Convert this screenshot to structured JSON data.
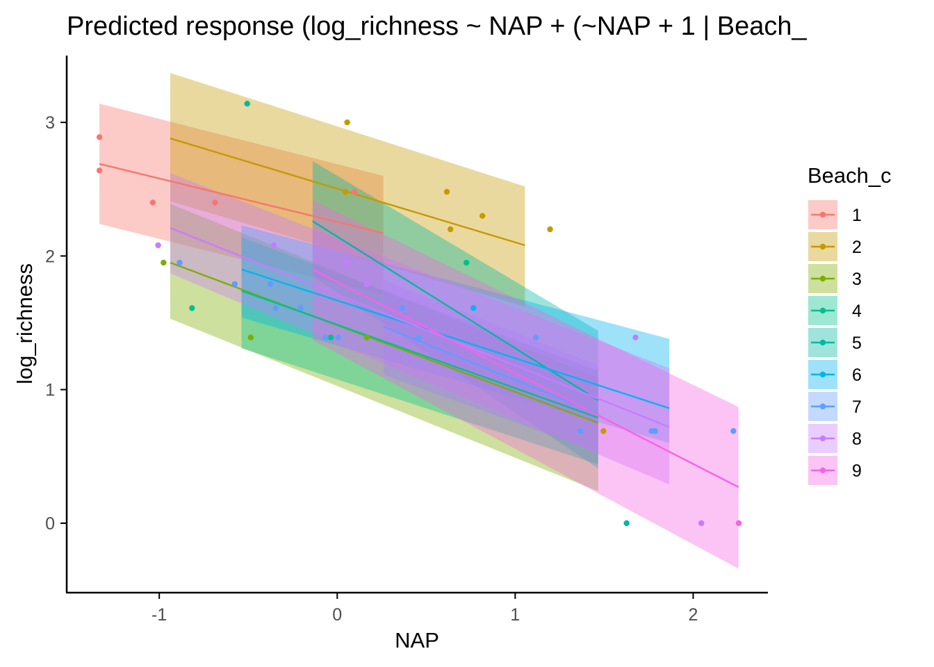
{
  "chart_data": {
    "type": "line",
    "title": "Predicted response (log_richness ~ NAP + (~NAP + 1 | Beach_",
    "xlabel": "NAP",
    "ylabel": "log_richness",
    "xlim": [
      -1.52,
      2.42
    ],
    "ylim": [
      -0.52,
      3.5
    ],
    "x_ticks": [
      -1,
      0,
      1,
      2
    ],
    "x_tick_labels": [
      "-1",
      "0",
      "1",
      "2"
    ],
    "y_ticks": [
      0,
      1,
      2,
      3
    ],
    "y_tick_labels": [
      "0",
      "1",
      "2",
      "3"
    ],
    "grid": false,
    "legend": {
      "title": "Beach_c",
      "placement": "right"
    },
    "series": [
      {
        "name": "1",
        "color": "#F8766D",
        "x": [
          -1.336,
          0.259
        ],
        "fit": [
          2.69,
          2.17
        ],
        "lower": [
          2.24,
          1.71
        ],
        "upper": [
          3.14,
          2.6
        ]
      },
      {
        "name": "2",
        "color": "#C49A00",
        "x": [
          -0.938,
          1.055
        ],
        "fit": [
          2.88,
          2.08
        ],
        "lower": [
          2.41,
          1.62
        ],
        "upper": [
          3.37,
          2.52
        ]
      },
      {
        "name": "3",
        "color": "#7CAE00",
        "x": [
          -0.938,
          1.466
        ],
        "fit": [
          1.95,
          0.75
        ],
        "lower": [
          1.53,
          0.24
        ],
        "upper": [
          2.39,
          1.09
        ]
      },
      {
        "name": "4",
        "color": "#00C08B",
        "x": [
          -0.538,
          1.466
        ],
        "fit": [
          1.74,
          0.79
        ],
        "lower": [
          1.31,
          0.44
        ],
        "upper": [
          2.14,
          1.14
        ]
      },
      {
        "name": "5",
        "color": "#00B8A0",
        "x": [
          -0.138,
          1.466
        ],
        "fit": [
          2.26,
          0.92
        ],
        "lower": [
          1.85,
          0.41
        ],
        "upper": [
          2.71,
          1.44
        ]
      },
      {
        "name": "6",
        "color": "#00B4F0",
        "x": [
          -0.538,
          1.866
        ],
        "fit": [
          1.9,
          0.86
        ],
        "lower": [
          1.54,
          0.6
        ],
        "upper": [
          2.23,
          1.38
        ]
      },
      {
        "name": "7",
        "color": "#619CFF",
        "x": [
          0.262,
          1.466
        ],
        "fit": [
          1.47,
          0.82
        ],
        "lower": [
          1.11,
          0.53
        ],
        "upper": [
          1.82,
          1.18
        ]
      },
      {
        "name": "8",
        "color": "#C77CFF",
        "x": [
          -0.938,
          1.866
        ],
        "fit": [
          2.21,
          0.72
        ],
        "lower": [
          1.87,
          0.29
        ],
        "upper": [
          2.62,
          1.16
        ]
      },
      {
        "name": "9",
        "color": "#F564E3",
        "x": [
          -0.138,
          2.255
        ],
        "fit": [
          1.9,
          0.27
        ],
        "lower": [
          1.37,
          -0.34
        ],
        "upper": [
          2.42,
          0.87
        ]
      }
    ],
    "points": [
      {
        "series": "1",
        "x": -1.336,
        "y": 2.89
      },
      {
        "series": "1",
        "x": -1.336,
        "y": 2.64
      },
      {
        "series": "1",
        "x": -1.036,
        "y": 2.4
      },
      {
        "series": "1",
        "x": -0.686,
        "y": 2.4
      },
      {
        "series": "1",
        "x": 0.096,
        "y": 2.48
      },
      {
        "series": "2",
        "x": 0.056,
        "y": 3.0
      },
      {
        "series": "2",
        "x": 0.046,
        "y": 2.48
      },
      {
        "series": "2",
        "x": 0.616,
        "y": 2.48
      },
      {
        "series": "2",
        "x": 0.636,
        "y": 2.2
      },
      {
        "series": "2",
        "x": 0.816,
        "y": 2.3
      },
      {
        "series": "2",
        "x": 1.196,
        "y": 2.2
      },
      {
        "series": "2",
        "x": 1.496,
        "y": 0.69
      },
      {
        "series": "3",
        "x": -0.976,
        "y": 1.95
      },
      {
        "series": "3",
        "x": -0.486,
        "y": 1.39
      },
      {
        "series": "3",
        "x": 0.166,
        "y": 1.39
      },
      {
        "series": "4",
        "x": -0.816,
        "y": 1.61
      },
      {
        "series": "4",
        "x": -0.036,
        "y": 1.39
      },
      {
        "series": "4",
        "x": 0.726,
        "y": 1.95
      },
      {
        "series": "5",
        "x": -0.506,
        "y": 3.14
      },
      {
        "series": "5",
        "x": 1.626,
        "y": 0.0
      },
      {
        "series": "6",
        "x": 0.766,
        "y": 1.61
      },
      {
        "series": "7",
        "x": -0.886,
        "y": 1.95
      },
      {
        "series": "7",
        "x": -0.576,
        "y": 1.79
      },
      {
        "series": "7",
        "x": -0.376,
        "y": 1.79
      },
      {
        "series": "7",
        "x": -0.346,
        "y": 1.61
      },
      {
        "series": "7",
        "x": -0.206,
        "y": 1.61
      },
      {
        "series": "7",
        "x": -0.066,
        "y": 1.39
      },
      {
        "series": "7",
        "x": 0.006,
        "y": 1.39
      },
      {
        "series": "7",
        "x": 0.366,
        "y": 1.61
      },
      {
        "series": "7",
        "x": 0.456,
        "y": 1.39
      },
      {
        "series": "7",
        "x": 1.116,
        "y": 1.39
      },
      {
        "series": "7",
        "x": 1.366,
        "y": 0.69
      },
      {
        "series": "7",
        "x": 1.766,
        "y": 0.69
      },
      {
        "series": "7",
        "x": 1.786,
        "y": 0.69
      },
      {
        "series": "7",
        "x": 2.226,
        "y": 0.69
      },
      {
        "series": "8",
        "x": -1.006,
        "y": 2.08
      },
      {
        "series": "8",
        "x": -0.356,
        "y": 2.08
      },
      {
        "series": "8",
        "x": 0.056,
        "y": 1.95
      },
      {
        "series": "8",
        "x": 0.166,
        "y": 1.79
      },
      {
        "series": "8",
        "x": 1.676,
        "y": 1.39
      },
      {
        "series": "8",
        "x": 2.046,
        "y": 0.0
      },
      {
        "series": "9",
        "x": 2.256,
        "y": 0.0
      }
    ]
  }
}
